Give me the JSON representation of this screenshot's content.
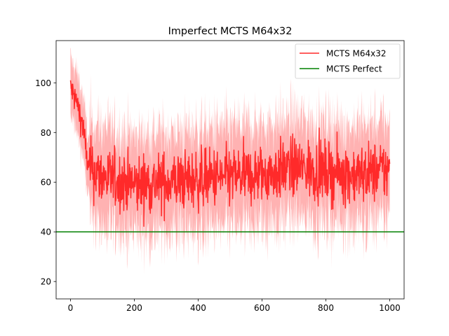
{
  "chart_data": {
    "type": "line",
    "title": "Imperfect MCTS M64x32",
    "xlabel": "",
    "ylabel": "",
    "xlim": [
      -45,
      1045
    ],
    "ylim": [
      13,
      117
    ],
    "x_ticks": [
      0,
      200,
      400,
      600,
      800,
      1000
    ],
    "y_ticks": [
      20,
      40,
      60,
      80,
      100
    ],
    "x_tick_labels": [
      "0",
      "200",
      "400",
      "600",
      "800",
      "1000"
    ],
    "y_tick_labels": [
      "20",
      "40",
      "60",
      "80",
      "100"
    ],
    "legend_position": "upper right",
    "grid": false,
    "series": [
      {
        "name": "MCTS M64x32",
        "color": "#ff2a2a",
        "band_color": "#ffaaaa",
        "x_range": [
          0,
          1000
        ],
        "trend_points": [
          {
            "x": 0,
            "y": 98
          },
          {
            "x": 20,
            "y": 92
          },
          {
            "x": 40,
            "y": 82
          },
          {
            "x": 55,
            "y": 66
          },
          {
            "x": 100,
            "y": 62
          },
          {
            "x": 200,
            "y": 59
          },
          {
            "x": 300,
            "y": 60
          },
          {
            "x": 400,
            "y": 61
          },
          {
            "x": 500,
            "y": 62
          },
          {
            "x": 600,
            "y": 63
          },
          {
            "x": 700,
            "y": 66
          },
          {
            "x": 800,
            "y": 64
          },
          {
            "x": 900,
            "y": 63
          },
          {
            "x": 1000,
            "y": 65
          }
        ],
        "noise_amplitude": 6,
        "band_halfwidth": 20
      },
      {
        "name": "MCTS Perfect",
        "color": "#008000",
        "type": "hline",
        "y": 40
      }
    ]
  }
}
